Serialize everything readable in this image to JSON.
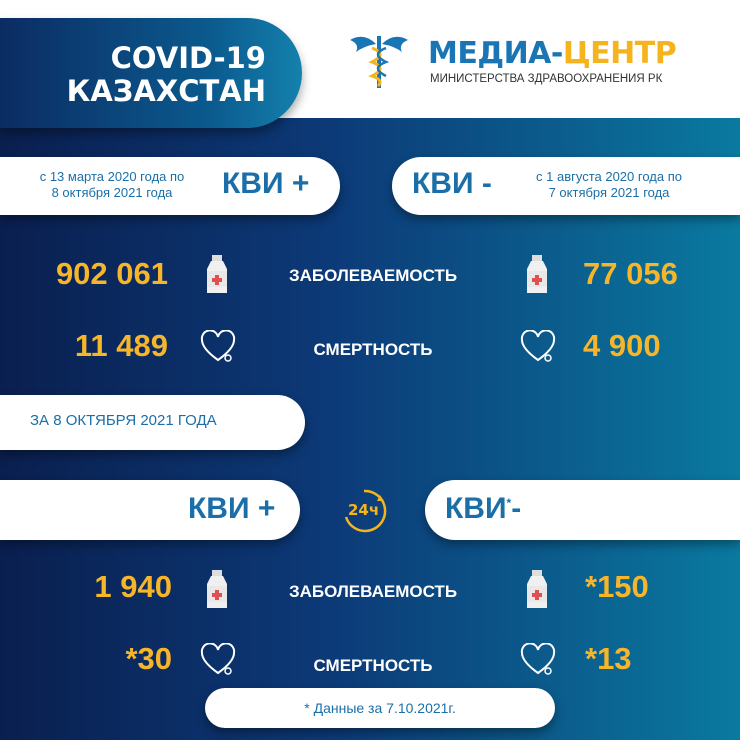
{
  "header": {
    "title_line1": "COVID-19",
    "title_line2": "КАЗАХСТАН",
    "brand_part1": "МЕДИА-",
    "brand_part2": "ЦЕНТР",
    "brand_sub": "МИНИСТЕРСТВА ЗДРАВООХРАНЕНИЯ РК"
  },
  "total": {
    "left": {
      "period_line1": "с 13 марта 2020 года по",
      "period_line2": "8 октября 2021 года",
      "label": "КВИ +",
      "cases": "902 061",
      "deaths": "11 489"
    },
    "right": {
      "period_line1": "с 1 августа 2020 года по",
      "period_line2": "7 октября 2021 года",
      "label": "КВИ -",
      "cases": "77 056",
      "deaths": "4 900"
    },
    "cases_label": "ЗАБОЛЕВАЕМОСТЬ",
    "deaths_label": "СМЕРТНОСТЬ"
  },
  "daily": {
    "date_label": "ЗА 8 ОКТЯБРЯ 2021 ГОДА",
    "icon_text": "24ч",
    "left": {
      "label": "КВИ +",
      "cases": "1 940",
      "deaths": "*30"
    },
    "right": {
      "label": "КВИ",
      "label_star": "*",
      "label_sign": "-",
      "cases": "*150",
      "deaths": "*13"
    },
    "cases_label": "ЗАБОЛЕВАЕМОСТЬ",
    "deaths_label": "СМЕРТНОСТЬ",
    "footnote": "* Данные за 7.10.2021г."
  },
  "colors": {
    "accent_yellow": "#f7b52a",
    "accent_blue": "#1a6fa8",
    "navy": "#0a1f4f"
  },
  "icons": [
    "caduceus-icon",
    "bottle-icon",
    "heart-stethoscope-icon",
    "clock-24h-icon"
  ]
}
